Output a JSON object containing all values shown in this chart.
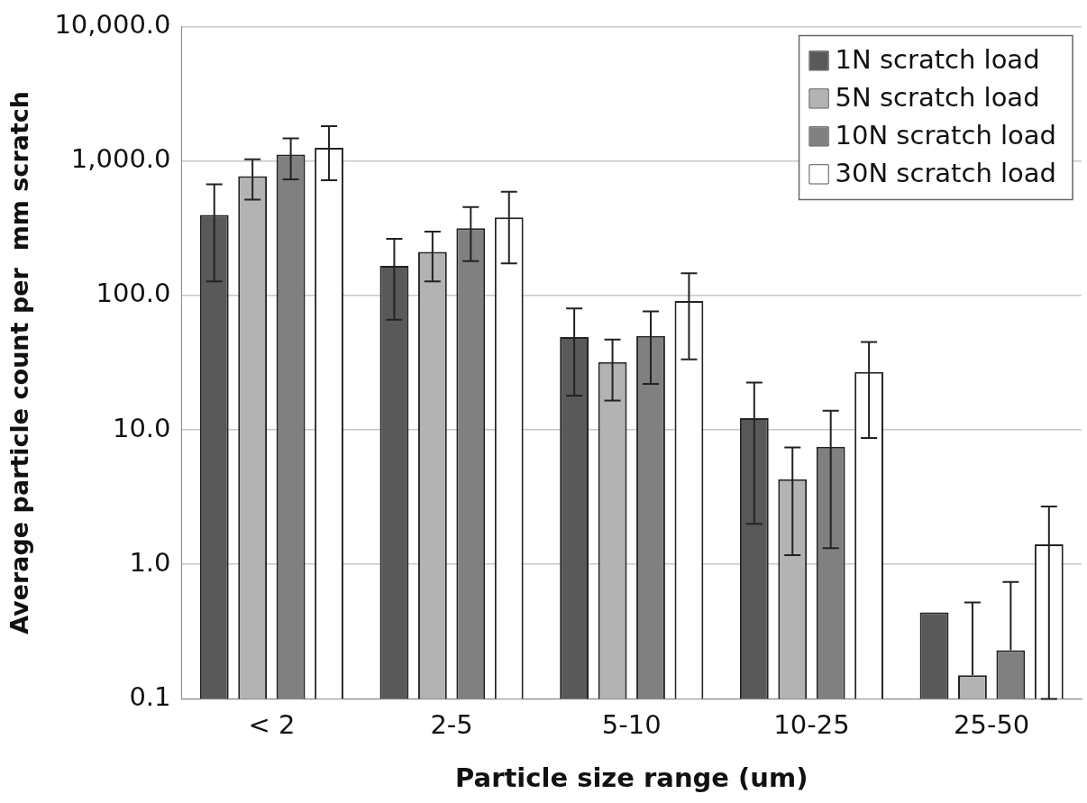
{
  "chart_data": {
    "type": "bar",
    "xlabel": "Particle size range (um)",
    "ylabel": "Average particle count per  mm scratch",
    "categories": [
      "< 2",
      "2-5",
      "5-10",
      "10-25",
      "25-50"
    ],
    "series": [
      {
        "name": "1N scratch load",
        "color": "#595959",
        "values": [
          396,
          166,
          49,
          12.2,
          0.44
        ],
        "errors": [
          [
            127,
            671
          ],
          [
            66,
            264
          ],
          [
            18,
            80
          ],
          [
            2,
            22.5
          ],
          null
        ]
      },
      {
        "name": "5N scratch load",
        "color": "#b3b3b3",
        "values": [
          771,
          211,
          32,
          4.3,
          0.15
        ],
        "errors": [
          [
            516,
            1028
          ],
          [
            127,
            298
          ],
          [
            16.5,
            47
          ],
          [
            1.17,
            7.4
          ],
          [
            0.15,
            0.52
          ]
        ]
      },
      {
        "name": "10N scratch load",
        "color": "#808080",
        "values": [
          1114,
          316,
          50,
          7.5,
          0.23
        ],
        "errors": [
          [
            731,
            1473
          ],
          [
            180,
            455
          ],
          [
            22,
            76
          ],
          [
            1.32,
            13.9
          ],
          [
            0.23,
            0.74
          ]
        ]
      },
      {
        "name": "30N scratch load",
        "color": "#ffffff",
        "values": [
          1251,
          380,
          91,
          27,
          1.41
        ],
        "errors": [
          [
            719,
            1811
          ],
          [
            173,
            591
          ],
          [
            33.5,
            146
          ],
          [
            8.7,
            45
          ],
          [
            0.1,
            2.69
          ]
        ]
      }
    ],
    "log": "y",
    "ylim": [
      0.1,
      10000
    ],
    "yticks": [
      {
        "value": 0.1,
        "label": "0.1"
      },
      {
        "value": 1,
        "label": "1.0"
      },
      {
        "value": 10,
        "label": "10.0"
      },
      {
        "value": 100,
        "label": "100.0"
      },
      {
        "value": 1000,
        "label": "1,000.0"
      },
      {
        "value": 10000,
        "label": "10,000.0"
      }
    ],
    "grid": "y",
    "legend": "top right"
  }
}
